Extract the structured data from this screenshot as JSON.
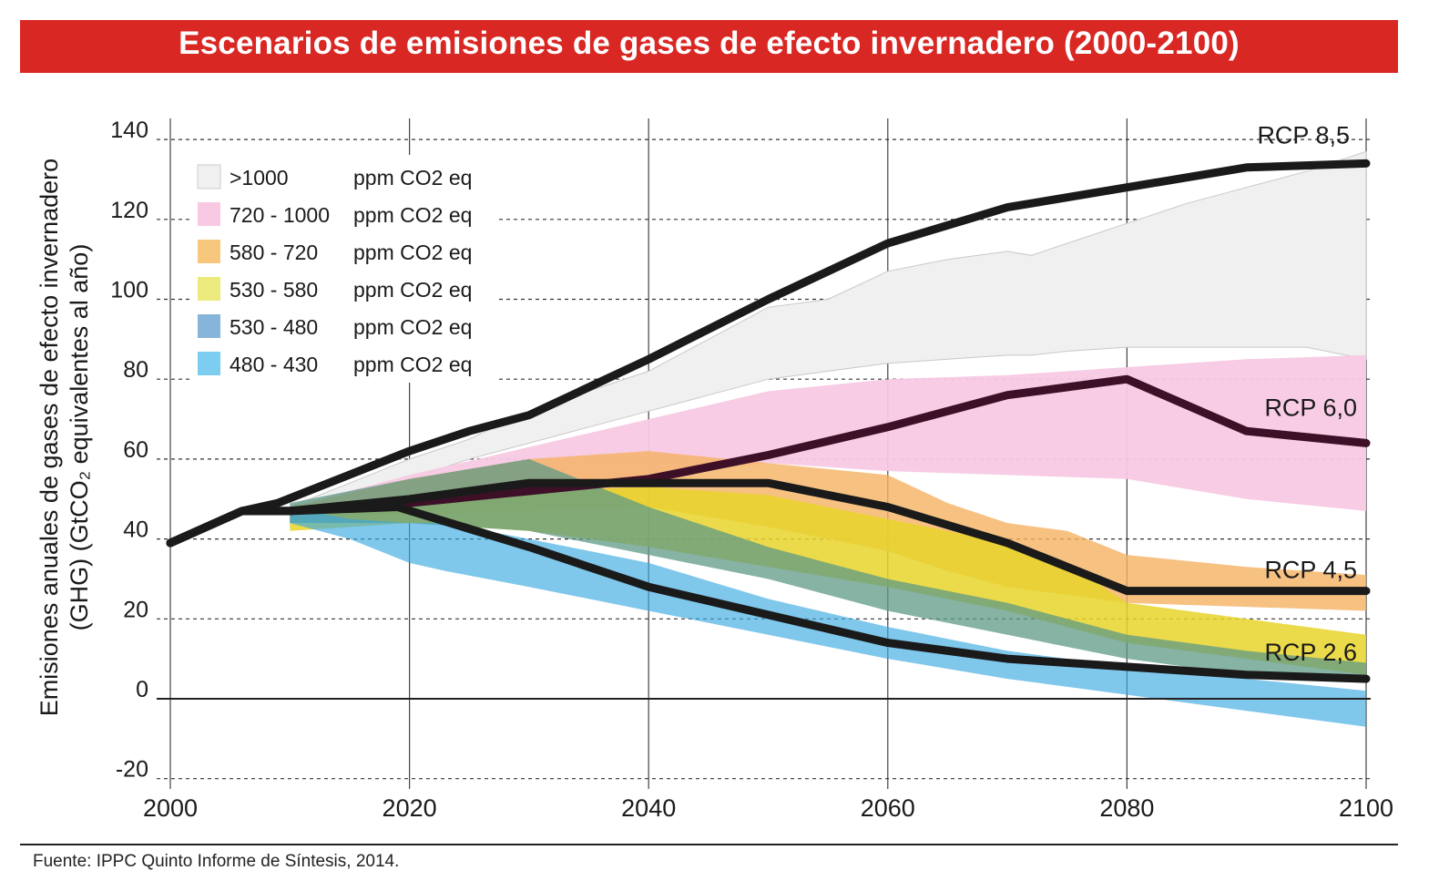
{
  "title": "Escenarios de emisiones de gases de efecto invernadero (2000-2100)",
  "source": "Fuente: IPPC Quinto Informe de Síntesis, 2014.",
  "chart_data": {
    "type": "area",
    "title": "Escenarios de emisiones de gases de efecto invernadero (2000-2100)",
    "xlabel": "",
    "ylabel_line1": "Emisiones anuales de gases de efecto invernadero",
    "ylabel_line2": "(GHG) (GtCO₂ equivalentes al año)",
    "xlim": [
      2000,
      2100
    ],
    "ylim": [
      -20,
      140
    ],
    "x_ticks": [
      2000,
      2020,
      2040,
      2060,
      2080,
      2100
    ],
    "y_ticks": [
      -20,
      0,
      20,
      40,
      60,
      80,
      100,
      120,
      140
    ],
    "x_tick_labels": [
      "2000",
      "2020",
      "2040",
      "2060",
      "2080",
      "2100"
    ],
    "y_tick_labels": [
      "-20",
      "0",
      "20",
      "40",
      "60",
      "80",
      "100",
      "120",
      "140"
    ],
    "grid": "horizontal dashed, vertical solid at x ticks",
    "legend_position": "top-left",
    "legend": [
      {
        "range": ">1000",
        "unit": "ppm CO2 eq",
        "color": "#f0f0f0"
      },
      {
        "range": "720 - 1000",
        "unit": "ppm CO2 eq",
        "color": "#f7c9e3"
      },
      {
        "range": "580 - 720",
        "unit": "ppm CO2 eq",
        "color": "#f7c77e"
      },
      {
        "range": "530 - 580",
        "unit": "ppm CO2 eq",
        "color": "#ecea7c"
      },
      {
        "range": "530 - 480",
        "unit": "ppm CO2 eq",
        "color": "#86b5d9"
      },
      {
        "range": "480 - 430",
        "unit": "ppm CO2 eq",
        "color": "#7ccdef"
      }
    ],
    "bands": [
      {
        "name": ">1000",
        "color": "#f0f0f0",
        "opacity": 1,
        "edge": "#c8c8c8",
        "x": [
          2010,
          2020,
          2025,
          2030,
          2035,
          2040,
          2045,
          2050,
          2055,
          2060,
          2065,
          2070,
          2072,
          2075,
          2080,
          2085,
          2090,
          2095,
          2100
        ],
        "upper": [
          48,
          60,
          65,
          72,
          77,
          82,
          90,
          98,
          100,
          107,
          110,
          112,
          111,
          114,
          119,
          124,
          128,
          132,
          137
        ],
        "lower": [
          48,
          55,
          60,
          64,
          68,
          72,
          76,
          80,
          82,
          84,
          85,
          86,
          86,
          87,
          88,
          88,
          88,
          88,
          85
        ]
      },
      {
        "name": "720 - 1000",
        "color": "#f7c9e3",
        "opacity": 0.95,
        "x": [
          2010,
          2020,
          2030,
          2040,
          2050,
          2060,
          2070,
          2080,
          2090,
          2100
        ],
        "upper": [
          48,
          56,
          63,
          70,
          77,
          80,
          81,
          83,
          85,
          86
        ],
        "lower": [
          48,
          49,
          52,
          56,
          59,
          57,
          56,
          55,
          50,
          47
        ]
      },
      {
        "name": "580 - 720",
        "color": "#f5b163",
        "opacity": 0.8,
        "x": [
          2010,
          2020,
          2030,
          2040,
          2050,
          2060,
          2065,
          2070,
          2075,
          2080,
          2090,
          2100
        ],
        "upper": [
          48,
          55,
          60,
          62,
          59,
          56,
          49,
          44,
          42,
          36,
          33,
          31
        ],
        "lower": [
          46,
          46,
          47,
          48,
          43,
          37,
          32,
          28,
          26,
          24,
          23,
          22
        ]
      },
      {
        "name": "530 - 580",
        "color": "#e8d42a",
        "opacity": 0.85,
        "x": [
          2010,
          2020,
          2030,
          2040,
          2050,
          2060,
          2070,
          2075,
          2080,
          2090,
          2100
        ],
        "upper": [
          48,
          50,
          52,
          53,
          51,
          45,
          39,
          34,
          24,
          20,
          16
        ],
        "lower": [
          42,
          44,
          42,
          38,
          33,
          28,
          22,
          18,
          14,
          10,
          6
        ]
      },
      {
        "name": "530 - 480",
        "color": "#5d9a86",
        "opacity": 0.75,
        "x": [
          2010,
          2020,
          2030,
          2040,
          2050,
          2060,
          2070,
          2080,
          2090,
          2100
        ],
        "upper": [
          49,
          55,
          60,
          48,
          38,
          30,
          24,
          16,
          12,
          9
        ],
        "lower": [
          44,
          44,
          42,
          36,
          30,
          22,
          16,
          10,
          6,
          4
        ]
      },
      {
        "name": "480 - 430",
        "color": "#3aa9e0",
        "opacity": 0.65,
        "x": [
          2010,
          2015,
          2020,
          2023,
          2030,
          2040,
          2050,
          2060,
          2070,
          2080,
          2090,
          2100
        ],
        "upper": [
          48,
          45,
          44,
          44,
          40,
          34,
          25,
          18,
          12,
          8,
          5,
          2
        ],
        "lower": [
          44,
          40,
          34,
          32,
          28,
          22,
          16,
          10,
          5,
          1,
          -3,
          -7
        ]
      }
    ],
    "series": [
      {
        "name": "RCP 8,5",
        "color": "#1a1a1a",
        "x": [
          2000,
          2006,
          2009,
          2020,
          2025,
          2030,
          2035,
          2040,
          2050,
          2060,
          2070,
          2080,
          2090,
          2100
        ],
        "values": [
          39,
          47,
          49,
          62,
          67,
          71,
          78,
          85,
          100,
          114,
          123,
          128,
          133,
          134
        ]
      },
      {
        "name": "RCP 6,0",
        "color": "#3d1028",
        "x": [
          2000,
          2006,
          2010,
          2020,
          2030,
          2040,
          2050,
          2060,
          2070,
          2080,
          2090,
          2100
        ],
        "values": [
          39,
          47,
          47,
          49,
          52,
          55,
          61,
          68,
          76,
          80,
          67,
          64
        ]
      },
      {
        "name": "RCP 4,5",
        "color": "#1a1a1a",
        "x": [
          2000,
          2006,
          2010,
          2020,
          2030,
          2040,
          2050,
          2060,
          2070,
          2080,
          2100
        ],
        "values": [
          39,
          47,
          47,
          50,
          54,
          54,
          54,
          48,
          39,
          27,
          27
        ]
      },
      {
        "name": "RCP 2,6",
        "color": "#1a1a1a",
        "x": [
          2000,
          2006,
          2010,
          2019,
          2030,
          2040,
          2050,
          2060,
          2070,
          2080,
          2090,
          2100
        ],
        "values": [
          39,
          47,
          47,
          48,
          38,
          28,
          21,
          14,
          10,
          8,
          6,
          5
        ]
      }
    ],
    "series_labels": [
      "RCP 8,5",
      "RCP 6,0",
      "RCP 4,5",
      "RCP 2,6"
    ]
  }
}
